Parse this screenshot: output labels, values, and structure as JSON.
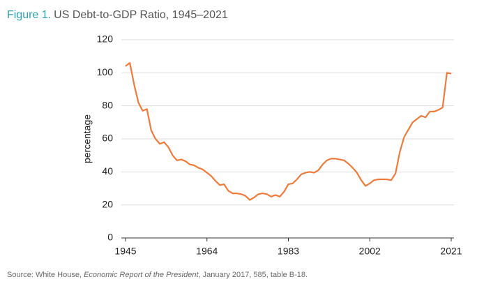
{
  "chart_data": {
    "type": "line",
    "title_label": "Figure 1.",
    "title": "US Debt-to-GDP Ratio, 1945–2021",
    "y_label": "percentage",
    "source": [
      "Source: White House, ",
      "Economic Report of the President",
      ", January 2017, 585, table B-18."
    ],
    "x": [
      1945,
      1946,
      1947,
      1948,
      1949,
      1950,
      1951,
      1952,
      1953,
      1954,
      1955,
      1956,
      1957,
      1958,
      1959,
      1960,
      1961,
      1962,
      1963,
      1964,
      1965,
      1966,
      1967,
      1968,
      1969,
      1970,
      1971,
      1972,
      1973,
      1974,
      1975,
      1976,
      1977,
      1978,
      1979,
      1980,
      1981,
      1982,
      1983,
      1984,
      1985,
      1986,
      1987,
      1988,
      1989,
      1990,
      1991,
      1992,
      1993,
      1994,
      1995,
      1996,
      1997,
      1998,
      1999,
      2000,
      2001,
      2002,
      2003,
      2004,
      2005,
      2006,
      2007,
      2008,
      2009,
      2010,
      2011,
      2012,
      2013,
      2014,
      2015,
      2016,
      2017,
      2018,
      2019,
      2020,
      2021
    ],
    "series": [
      {
        "name": "Debt-to-GDP",
        "color": "#f07a3a",
        "values": [
          104,
          106,
          93,
          82,
          77,
          78,
          65,
          60,
          57,
          58,
          55,
          50,
          47,
          47.5,
          46.5,
          44.5,
          44,
          42.5,
          41.5,
          39.5,
          37.5,
          34.5,
          32,
          32.5,
          28.5,
          27,
          27,
          26.5,
          25.5,
          23,
          24.5,
          26.5,
          27,
          26.5,
          25,
          26,
          25,
          28,
          32.5,
          33,
          35.5,
          38.5,
          39.5,
          40,
          39.5,
          41,
          44.5,
          47,
          48,
          48,
          47.5,
          47,
          45,
          42.5,
          39.5,
          35,
          31.5,
          33,
          35,
          35.5,
          35.5,
          35.5,
          35,
          39,
          52,
          61,
          65.5,
          70,
          72,
          74,
          73,
          76.5,
          76.5,
          77.5,
          79,
          100,
          99.5
        ]
      }
    ],
    "xlim": [
      1945,
      2021
    ],
    "xticks": [
      1945,
      1964,
      1983,
      2002,
      2021
    ],
    "ylim": [
      0,
      120
    ],
    "yticks": [
      0,
      20,
      40,
      60,
      80,
      100,
      120
    ],
    "grid": true
  }
}
